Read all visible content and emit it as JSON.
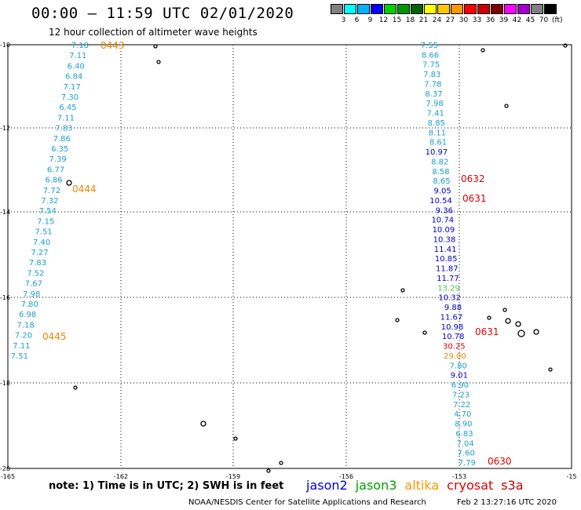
{
  "header": {
    "title": "00:00 – 11:59 UTC 02/01/2020",
    "subtitle": "12 hour collection of altimeter wave heights"
  },
  "legend": {
    "colors": [
      "#808080",
      "#00ffff",
      "#00b4ff",
      "#0000ff",
      "#00d200",
      "#009600",
      "#006400",
      "#ffff00",
      "#ffc800",
      "#ff9600",
      "#ff0000",
      "#c80000",
      "#800000",
      "#ff00ff",
      "#a000c8",
      "#808080",
      "#000000"
    ],
    "ticks": [
      "3",
      "6",
      "9",
      "12",
      "15",
      "18",
      "21",
      "24",
      "27",
      "30",
      "33",
      "36",
      "39",
      "42",
      "45",
      "70"
    ],
    "unit": "(ft)"
  },
  "axes": {
    "lat_labels": [
      "-10",
      "-12",
      "-14",
      "-16",
      "-18",
      "-20"
    ],
    "lon_labels": [
      "-165",
      "-162",
      "-159",
      "-156",
      "-153",
      "-15"
    ]
  },
  "colors": {
    "cyan": "#1aa0d0",
    "blue": "#0000c8",
    "orange": "#e08a00",
    "red": "#e00000",
    "green": "#50c850"
  },
  "track_west": {
    "values": [
      "7.18",
      "7.11",
      "6.40",
      "6.84",
      "7.17",
      "7.30",
      "6.45",
      "7.11",
      "7.83",
      "7.86",
      "6.35",
      "7.39",
      "6.77",
      "6.86",
      "7.72",
      "7.32",
      "7.54",
      "7.15",
      "7.51",
      "7.40",
      "7.27",
      "7.83",
      "7.52",
      "7.67",
      "7.98",
      "7.80",
      "6.98",
      "7.18",
      "7.20",
      "7.11",
      "7.51"
    ],
    "times": [
      "0443",
      "0444",
      "0445"
    ]
  },
  "track_east": {
    "values": [
      {
        "v": "7.55",
        "c": "cyan"
      },
      {
        "v": "8.66",
        "c": "cyan"
      },
      {
        "v": "7.75",
        "c": "cyan"
      },
      {
        "v": "7.83",
        "c": "cyan"
      },
      {
        "v": "7.78",
        "c": "cyan"
      },
      {
        "v": "8.37",
        "c": "cyan"
      },
      {
        "v": "7.98",
        "c": "cyan"
      },
      {
        "v": "7.41",
        "c": "cyan"
      },
      {
        "v": "8.85",
        "c": "cyan"
      },
      {
        "v": "8.11",
        "c": "cyan"
      },
      {
        "v": "8.61",
        "c": "cyan"
      },
      {
        "v": "10.97",
        "c": "blue"
      },
      {
        "v": "8.82",
        "c": "cyan"
      },
      {
        "v": "8.58",
        "c": "cyan"
      },
      {
        "v": "8.65",
        "c": "cyan"
      },
      {
        "v": "9.05",
        "c": "blue"
      },
      {
        "v": "10.54",
        "c": "blue"
      },
      {
        "v": "9.36",
        "c": "blue"
      },
      {
        "v": "10.74",
        "c": "blue"
      },
      {
        "v": "10.09",
        "c": "blue"
      },
      {
        "v": "10.38",
        "c": "blue"
      },
      {
        "v": "11.41",
        "c": "blue"
      },
      {
        "v": "10.85",
        "c": "blue"
      },
      {
        "v": "11.87",
        "c": "blue"
      },
      {
        "v": "11.77",
        "c": "blue"
      },
      {
        "v": "13.29",
        "c": "green"
      },
      {
        "v": "10.32",
        "c": "blue"
      },
      {
        "v": "9.88",
        "c": "blue"
      },
      {
        "v": "11.67",
        "c": "blue"
      },
      {
        "v": "10.98",
        "c": "blue"
      },
      {
        "v": "10.78",
        "c": "blue"
      },
      {
        "v": "30.25",
        "c": "red"
      },
      {
        "v": "29.00",
        "c": "orange"
      },
      {
        "v": "7.80",
        "c": "cyan"
      },
      {
        "v": "9.01",
        "c": "blue"
      },
      {
        "v": "6.90",
        "c": "cyan"
      },
      {
        "v": "7.23",
        "c": "cyan"
      },
      {
        "v": "7.22",
        "c": "cyan"
      },
      {
        "v": "4.70",
        "c": "cyan"
      },
      {
        "v": "8.90",
        "c": "cyan"
      },
      {
        "v": "6.83",
        "c": "cyan"
      },
      {
        "v": "7.04",
        "c": "cyan"
      },
      {
        "v": "7.60",
        "c": "cyan"
      },
      {
        "v": "7.79",
        "c": "cyan"
      }
    ],
    "times": [
      "0632",
      "0631",
      "0631",
      "0630"
    ]
  },
  "footer": {
    "note": "note: 1) Time is in UTC; 2) SWH is in feet",
    "satellites": [
      {
        "name": "jason2",
        "color": "#0000e0"
      },
      {
        "name": "jason3",
        "color": "#00a000"
      },
      {
        "name": "altika",
        "color": "#ff9600"
      },
      {
        "name": "cryosat",
        "color": "#e00000"
      },
      {
        "name": "s3a",
        "color": "#c80000"
      }
    ],
    "credit": "NOAA/NESDIS Center for Satellite Applications and Research",
    "timestamp": "Feb  2 13:27:16 UTC 2020"
  }
}
